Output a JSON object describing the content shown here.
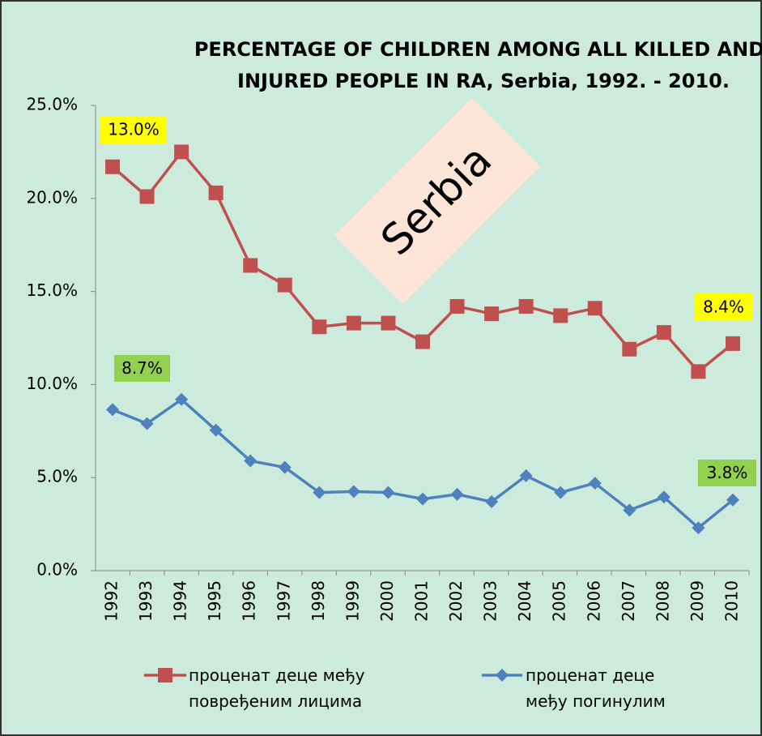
{
  "chart_data": {
    "type": "line",
    "title": [
      "PERCENTAGE OF CHILDREN AMONG ALL KILLED AND",
      "INJURED PEOPLE IN RA, Serbia, 1992. - 2010."
    ],
    "categories": [
      "1992",
      "1993",
      "1994",
      "1995",
      "1996",
      "1997",
      "1998",
      "1999",
      "2000",
      "2001",
      "2002",
      "2003",
      "2004",
      "2005",
      "2006",
      "2007",
      "2008",
      "2009",
      "2010"
    ],
    "series": [
      {
        "name": "проценат деце међу повређеним лицима",
        "color": "#c0504d",
        "marker": "square",
        "values": [
          21.7,
          20.1,
          22.5,
          20.3,
          16.4,
          15.35,
          13.1,
          13.3,
          13.3,
          12.3,
          14.2,
          13.8,
          14.2,
          13.7,
          14.1,
          11.9,
          12.8,
          10.7,
          12.2
        ]
      },
      {
        "name": "проценат деце међу погинулим",
        "color": "#4f81bd",
        "marker": "diamond",
        "values": [
          8.65,
          7.9,
          9.2,
          7.55,
          5.9,
          5.55,
          4.2,
          4.25,
          4.2,
          3.85,
          4.1,
          3.7,
          5.1,
          4.2,
          4.7,
          3.25,
          3.95,
          2.3,
          3.8
        ]
      }
    ],
    "ylim": [
      0,
      25
    ],
    "yticks": [
      {
        "value": 0,
        "label": "0.0%"
      },
      {
        "value": 5,
        "label": "5.0%"
      },
      {
        "value": 10,
        "label": "10.0%"
      },
      {
        "value": 15,
        "label": "15.0%"
      },
      {
        "value": 20,
        "label": "20.0%"
      },
      {
        "value": 25,
        "label": "25.0%"
      }
    ],
    "annotations": [
      {
        "text": "13.0%",
        "color": "#ffff00"
      },
      {
        "text": "8.4%",
        "color": "#ffff00"
      },
      {
        "text": "8.7%",
        "color": "#92d050"
      },
      {
        "text": "3.8%",
        "color": "#92d050"
      },
      {
        "text": "Serbia",
        "color": "#fce4d6"
      }
    ]
  }
}
